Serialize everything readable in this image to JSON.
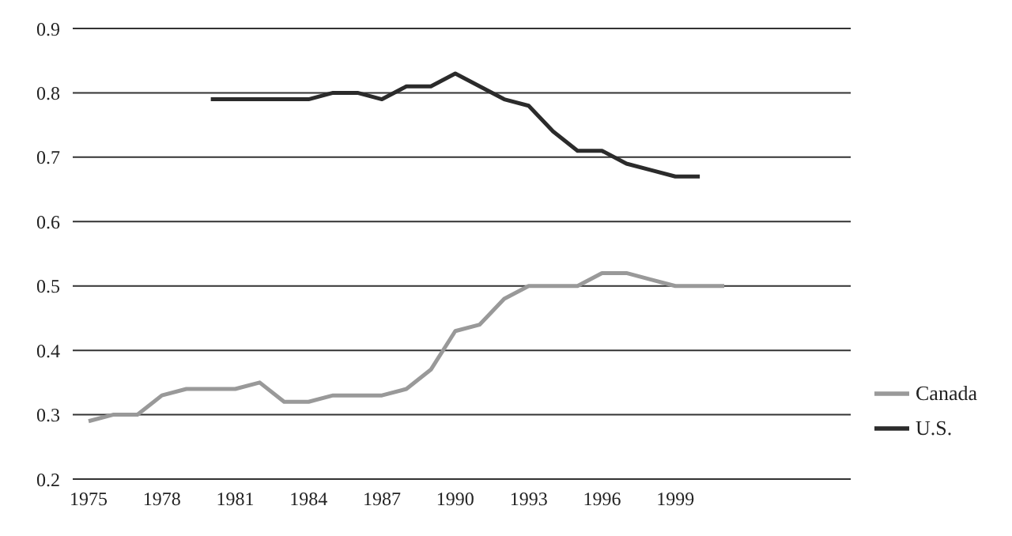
{
  "chart_data": {
    "type": "line",
    "categories": [
      "1975",
      null,
      null,
      "1978",
      null,
      null,
      "1981",
      null,
      null,
      "1984",
      null,
      null,
      "1987",
      null,
      null,
      "1990",
      null,
      null,
      "1993",
      null,
      null,
      "1996",
      null,
      null,
      "1999",
      null,
      null
    ],
    "series": [
      {
        "name": "Canada",
        "color": "#999999",
        "values": [
          0.29,
          0.3,
          0.3,
          0.33,
          0.34,
          0.34,
          0.34,
          0.35,
          0.32,
          0.32,
          0.33,
          0.33,
          0.33,
          0.34,
          0.37,
          0.43,
          0.44,
          0.48,
          0.5,
          0.5,
          0.5,
          0.52,
          0.52,
          0.51,
          0.5,
          0.5,
          0.5
        ]
      },
      {
        "name": "U.S.",
        "color": "#2b2b2b",
        "values": [
          null,
          null,
          null,
          null,
          null,
          0.79,
          0.79,
          0.79,
          0.79,
          0.79,
          0.8,
          0.8,
          0.79,
          0.81,
          0.81,
          0.83,
          0.81,
          0.79,
          0.78,
          0.74,
          0.71,
          0.71,
          0.69,
          0.68,
          0.67,
          0.67,
          null
        ]
      }
    ],
    "ylim": [
      0.2,
      0.9
    ],
    "yticks": [
      0.2,
      0.3,
      0.4,
      0.5,
      0.6,
      0.7,
      0.8,
      0.9
    ],
    "grid": "y",
    "legend": "right",
    "marker": "none",
    "line_style": "solid"
  }
}
